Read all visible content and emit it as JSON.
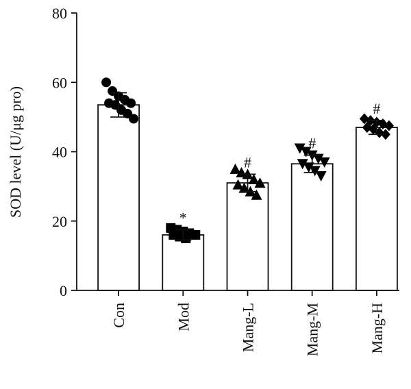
{
  "chart_data": {
    "type": "bar",
    "ylabel": "SOD level (U/μg pro)",
    "categories": [
      "Con",
      "Mod",
      "Mang-L",
      "Mang-M",
      "Mang-H"
    ],
    "values": [
      53.5,
      16,
      31,
      36.5,
      47
    ],
    "errors": [
      3.5,
      1.5,
      2.5,
      2.5,
      2
    ],
    "annotations": [
      null,
      "*",
      "#",
      "#",
      "#"
    ],
    "points": [
      [
        60,
        57.5,
        56,
        55,
        54,
        54,
        53.5,
        52,
        51,
        49.5
      ],
      [
        18,
        17.5,
        17,
        16.5,
        16,
        16,
        15.5,
        15
      ],
      [
        35,
        34,
        33.5,
        32,
        31,
        30.5,
        29.5,
        28.5,
        27.5
      ],
      [
        41,
        40,
        39,
        38,
        37,
        36.5,
        35.5,
        34.5,
        33
      ],
      [
        49.5,
        49,
        48.5,
        48,
        47.5,
        47,
        46.5,
        45.5,
        45
      ]
    ],
    "markers": [
      "circle",
      "square",
      "triangle-up",
      "triangle-down",
      "diamond"
    ],
    "color": "#ffffff",
    "marker_color": "#000000",
    "ylim": [
      0,
      80
    ],
    "yticks": [
      0,
      20,
      40,
      60,
      80
    ]
  }
}
